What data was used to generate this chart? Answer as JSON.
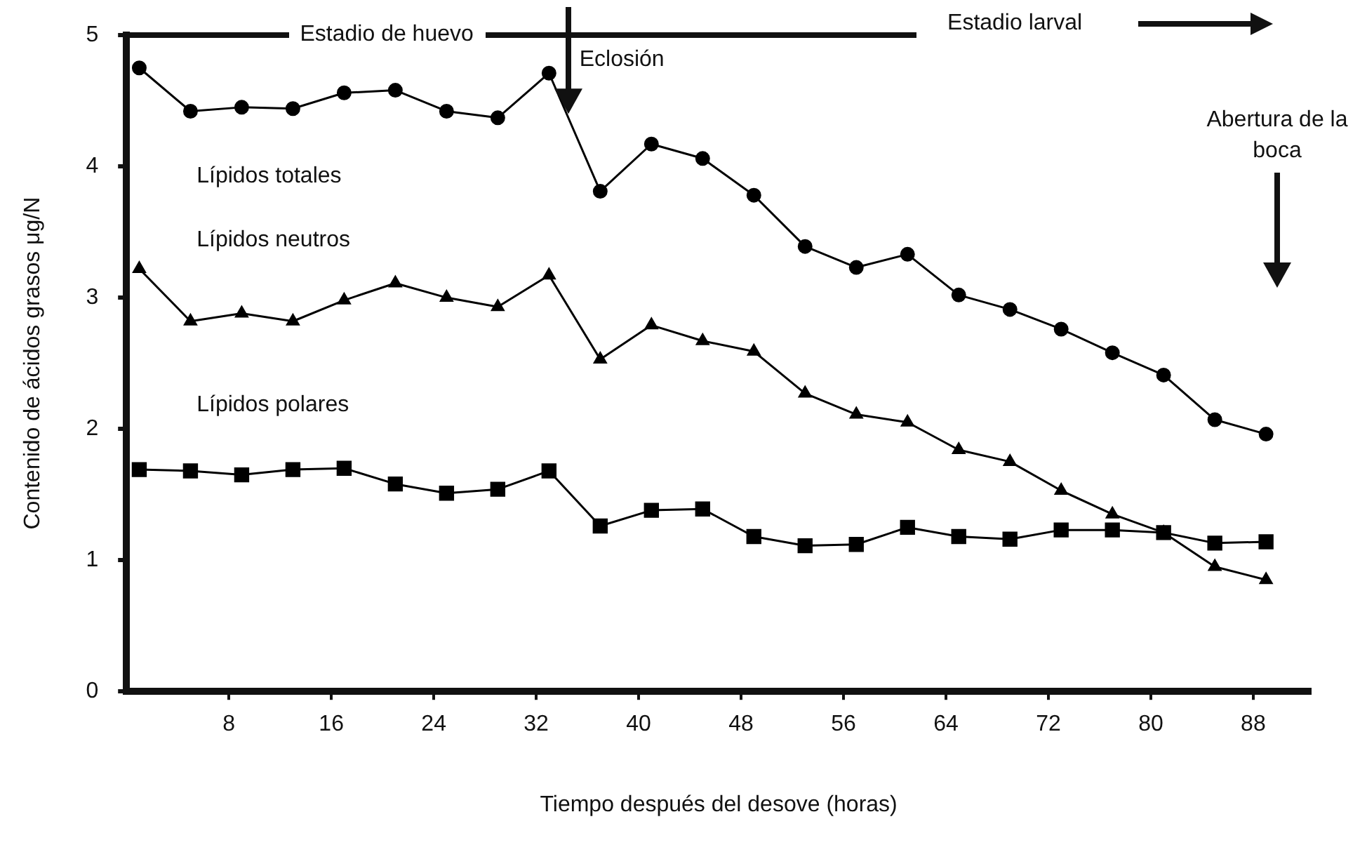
{
  "chart_data": {
    "type": "line",
    "xlabel": "Tiempo después del desove (horas)",
    "ylabel": "Contenido de ácidos grasos μg/N",
    "x": [
      1,
      5,
      9,
      13,
      17,
      21,
      25,
      29,
      33,
      37,
      41,
      45,
      49,
      53,
      57,
      61,
      65,
      69,
      73,
      77,
      81,
      85,
      89
    ],
    "series": [
      {
        "name": "Lípidos totales",
        "color": "#000000",
        "marker": "circle",
        "values": [
          4.75,
          4.42,
          4.45,
          4.44,
          4.56,
          4.58,
          4.42,
          4.37,
          4.71,
          3.81,
          4.17,
          4.06,
          3.78,
          3.39,
          3.23,
          3.33,
          3.02,
          2.91,
          2.76,
          2.58,
          2.41,
          2.07,
          1.96
        ]
      },
      {
        "name": "Lípidos neutros",
        "color": "#000000",
        "marker": "triangle",
        "values": [
          3.22,
          2.82,
          2.88,
          2.82,
          2.98,
          3.11,
          3.0,
          2.93,
          3.17,
          2.53,
          2.79,
          2.67,
          2.59,
          2.27,
          2.11,
          2.05,
          1.84,
          1.75,
          1.53,
          1.35,
          1.21,
          0.95,
          0.85
        ]
      },
      {
        "name": "Lípidos polares",
        "color": "#000000",
        "marker": "square",
        "values": [
          1.69,
          1.68,
          1.65,
          1.69,
          1.7,
          1.58,
          1.51,
          1.54,
          1.68,
          1.26,
          1.38,
          1.39,
          1.18,
          1.11,
          1.12,
          1.25,
          1.18,
          1.16,
          1.23,
          1.23,
          1.21,
          1.13,
          1.14
        ]
      }
    ],
    "xlim": [
      0,
      92.5
    ],
    "xticks": [
      8,
      16,
      24,
      32,
      40,
      48,
      56,
      64,
      72,
      80,
      88
    ],
    "ylim": [
      0,
      5
    ],
    "yticks": [
      0,
      1,
      2,
      3,
      4,
      5
    ],
    "grid": false,
    "legend": false,
    "line_style": "solid",
    "annotations": [
      "Estadio de huevo",
      "Estadio larval",
      {
        "text": "Eclosión",
        "x": 34.5,
        "y": 4.4
      },
      "Abertura de la boca"
    ]
  }
}
